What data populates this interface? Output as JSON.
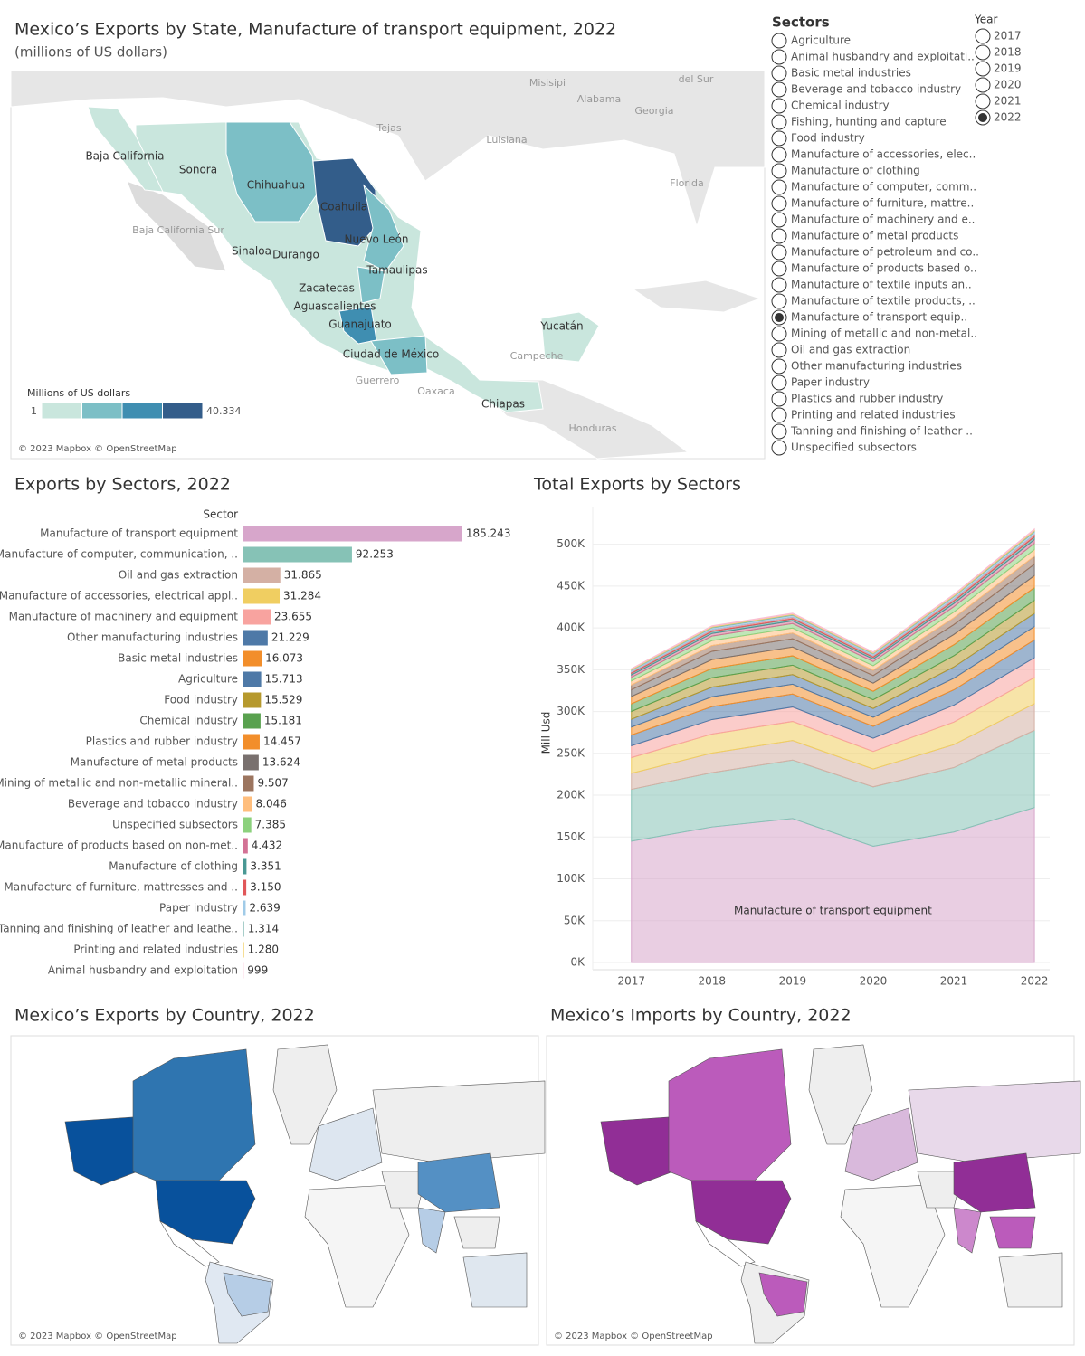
{
  "map": {
    "title": "Mexico’s Exports by State, Manufacture of transport equipment, 2022",
    "subtitle": "(millions of US dollars)",
    "state_labels": [
      "Baja California",
      "Sonora",
      "Chihuahua",
      "Coahuila",
      "Nuevo León",
      "Sinaloa",
      "Durango",
      "Tamaulipas",
      "Zacatecas",
      "Aguascalientes",
      "Guanajuato",
      "Ciudad de México",
      "Yucatán",
      "Chiapas"
    ],
    "region_labels": [
      "Tejas",
      "Misisipi",
      "Alabama",
      "Georgia",
      "Luisiana",
      "Florida",
      "Baja California Sur",
      "del Sur",
      "Campeche",
      "Guerrero",
      "Oaxaca",
      "Honduras"
    ],
    "legend_title": "Millions of US dollars",
    "legend_ticks": [
      1,
      {
        "value": 40334,
        "label": "40.334"
      }
    ],
    "attribution": "© 2023 Mapbox © OpenStreetMap"
  },
  "filters": {
    "sectors_title": "Sectors",
    "sectors": [
      "Agriculture",
      "Animal husbandry and exploitati..",
      "Basic metal industries",
      "Beverage and tobacco industry",
      "Chemical industry",
      "Fishing, hunting and capture",
      "Food industry",
      "Manufacture of accessories, elec..",
      "Manufacture of clothing",
      "Manufacture of computer, comm..",
      "Manufacture of furniture, mattre..",
      "Manufacture of machinery and e..",
      "Manufacture of metal products",
      "Manufacture of petroleum and co..",
      "Manufacture of products based o..",
      "Manufacture of textile inputs an..",
      "Manufacture of textile products, ..",
      "Manufacture of transport equip..",
      "Mining of metallic and non-metal..",
      "Oil and gas extraction",
      "Other manufacturing industries",
      "Paper industry",
      "Plastics and rubber industry",
      "Printing and related industries",
      "Tanning and finishing of leather ..",
      "Unspecified subsectors"
    ],
    "sectors_selected": 17,
    "years_title": "Year",
    "years": [
      2017,
      2018,
      2019,
      2020,
      2021,
      2022
    ],
    "years_selected": 5
  },
  "chart_data": [
    {
      "type": "bar",
      "orientation": "horizontal",
      "title": "Exports by Sectors, 2022",
      "y_axis_title": "Sector",
      "categories": [
        "Manufacture of transport equipment",
        "Manufacture of computer, communication, ..",
        "Oil and gas extraction",
        "Manufacture of accessories, electrical appl..",
        "Manufacture of machinery and equipment",
        "Other manufacturing industries",
        "Basic metal industries",
        "Agriculture",
        "Food industry",
        "Chemical industry",
        "Plastics and rubber industry",
        "Manufacture of metal products",
        "Mining of metallic and non-metallic mineral..",
        "Beverage and tobacco industry",
        "Unspecified subsectors",
        "Manufacture of products based on non-met..",
        "Manufacture of clothing",
        "Manufacture of furniture, mattresses and ..",
        "Paper industry",
        "Tanning and finishing of leather and leathe..",
        "Printing and related industries",
        "Animal husbandry and exploitation"
      ],
      "values": [
        185243,
        92253,
        31865,
        31284,
        23655,
        21229,
        16073,
        15713,
        15529,
        15181,
        14457,
        13624,
        9507,
        8046,
        7385,
        4432,
        3351,
        3150,
        2639,
        1314,
        1280,
        999
      ],
      "value_labels": [
        "185.243",
        "92.253",
        "31.865",
        "31.284",
        "23.655",
        "21.229",
        "16.073",
        "15.713",
        "15.529",
        "15.181",
        "14.457",
        "13.624",
        "9.507",
        "8.046",
        "7.385",
        "4.432",
        "3.351",
        "3.150",
        "2.639",
        "1.314",
        "1.280",
        "999"
      ],
      "colors": [
        "#d7a6cb",
        "#86c2b6",
        "#d4b0a4",
        "#f0ce61",
        "#f8a39f",
        "#4e79a7",
        "#f28e2b",
        "#4e79a7",
        "#b6992d",
        "#59a14f",
        "#f28e2b",
        "#79706e",
        "#9c755f",
        "#ffbe7d",
        "#8cd17d",
        "#d37295",
        "#499894",
        "#e15759",
        "#a0cbe8",
        "#86bcb6",
        "#f1ce63",
        "#fabfd2"
      ],
      "xlim": [
        0,
        238000
      ]
    },
    {
      "type": "area",
      "stacked": true,
      "title": "Total Exports by Sectors",
      "y_axis_title": "Mill Usd",
      "annotation": "Manufacture of transport equipment",
      "x": [
        2017,
        2018,
        2019,
        2020,
        2021,
        2022
      ],
      "xlim": [
        2016.52,
        2022.19
      ],
      "ylim": [
        0,
        545000
      ],
      "yticks": [
        {
          "value": 0,
          "label": "0K"
        },
        {
          "value": 50000,
          "label": "50K"
        },
        {
          "value": 100000,
          "label": "100K"
        },
        {
          "value": 150000,
          "label": "150K"
        },
        {
          "value": 200000,
          "label": "200K"
        },
        {
          "value": 250000,
          "label": "250K"
        },
        {
          "value": 300000,
          "label": "300K"
        },
        {
          "value": 350000,
          "label": "350K"
        },
        {
          "value": 400000,
          "label": "400K"
        },
        {
          "value": 450000,
          "label": "450K"
        },
        {
          "value": 500000,
          "label": "500K"
        }
      ],
      "grid": true,
      "series": [
        {
          "color": "#d7a6cb",
          "values": [
            145000,
            162000,
            172000,
            139000,
            156000,
            185243
          ]
        },
        {
          "color": "#86c2b6",
          "values": [
            62000,
            65000,
            70000,
            71000,
            77000,
            92253
          ]
        },
        {
          "color": "#d4b0a4",
          "values": [
            19100,
            23300,
            23300,
            21300,
            27400,
            31865
          ]
        },
        {
          "color": "#f0ce61",
          "values": [
            18800,
            22800,
            22800,
            21000,
            26900,
            31284
          ]
        },
        {
          "color": "#f8a39f",
          "values": [
            14200,
            17300,
            17300,
            15800,
            20300,
            23655
          ]
        },
        {
          "color": "#4e79a7",
          "values": [
            12700,
            15500,
            15500,
            14200,
            18300,
            21229
          ]
        },
        {
          "color": "#f28e2b",
          "values": [
            9600,
            11700,
            11700,
            10800,
            13800,
            16073
          ]
        },
        {
          "color": "#4e79a7",
          "values": [
            9400,
            11500,
            11500,
            10500,
            13500,
            15713
          ]
        },
        {
          "color": "#b6992d",
          "values": [
            9300,
            11300,
            11300,
            10400,
            13400,
            15529
          ]
        },
        {
          "color": "#59a14f",
          "values": [
            9100,
            11100,
            11100,
            10200,
            13100,
            15181
          ]
        },
        {
          "color": "#f28e2b",
          "values": [
            8700,
            10600,
            10600,
            9700,
            12400,
            14457
          ]
        },
        {
          "color": "#79706e",
          "values": [
            8200,
            9900,
            9900,
            9100,
            11700,
            13624
          ]
        },
        {
          "color": "#9c755f",
          "values": [
            5700,
            6900,
            6900,
            6400,
            8200,
            9507
          ]
        },
        {
          "color": "#ffbe7d",
          "values": [
            4800,
            5900,
            5900,
            5400,
            6900,
            8046
          ]
        },
        {
          "color": "#8cd17d",
          "values": [
            4400,
            5400,
            5400,
            4900,
            6400,
            7385
          ]
        },
        {
          "color": "#d37295",
          "values": [
            2700,
            3200,
            3200,
            3000,
            3800,
            4432
          ]
        },
        {
          "color": "#499894",
          "values": [
            2000,
            2400,
            2400,
            2200,
            2900,
            3351
          ]
        },
        {
          "color": "#e15759",
          "values": [
            1900,
            2300,
            2300,
            2100,
            2700,
            3150
          ]
        },
        {
          "color": "#a0cbe8",
          "values": [
            1600,
            1900,
            1900,
            1800,
            2300,
            2639
          ]
        },
        {
          "color": "#86bcb6",
          "values": [
            800,
            1000,
            1000,
            900,
            1100,
            1314
          ]
        },
        {
          "color": "#f1ce63",
          "values": [
            800,
            900,
            900,
            900,
            1100,
            1280
          ]
        },
        {
          "color": "#fabfd2",
          "values": [
            600,
            700,
            700,
            700,
            900,
            999
          ]
        }
      ]
    }
  ],
  "world_maps": [
    {
      "title": "Mexico’s Exports by Country, 2022",
      "attribution": "© 2023 Mapbox © OpenStreetMap"
    },
    {
      "title": "Mexico’s Imports by Country, 2022",
      "attribution": "© 2023 Mapbox © OpenStreetMap"
    }
  ]
}
